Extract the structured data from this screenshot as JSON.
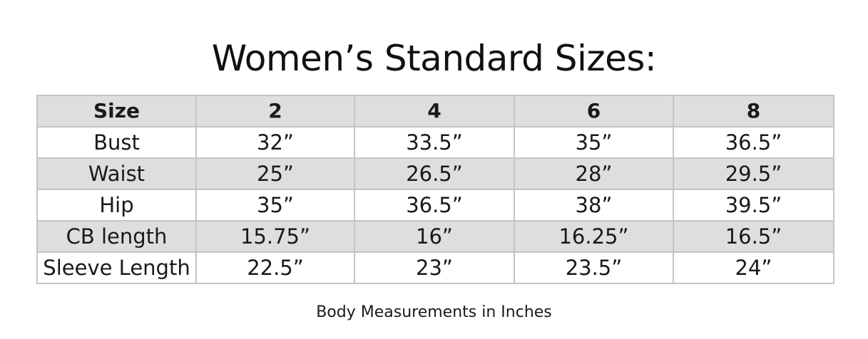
{
  "title": "Women’s Standard Sizes:",
  "table": {
    "header": [
      "Size",
      "2",
      "4",
      "6",
      "8"
    ],
    "rows": [
      {
        "label": "Bust",
        "values": [
          "32”",
          "33.5”",
          "35”",
          "36.5”"
        ]
      },
      {
        "label": "Waist",
        "values": [
          "25”",
          "26.5”",
          "28”",
          "29.5”"
        ]
      },
      {
        "label": "Hip",
        "values": [
          "35”",
          "36.5”",
          "38”",
          "39.5”"
        ]
      },
      {
        "label": "CB length",
        "values": [
          "15.75”",
          "16”",
          "16.25”",
          "16.5”"
        ]
      },
      {
        "label": "Sleeve Length",
        "values": [
          "22.5”",
          "23”",
          "23.5”",
          "24”"
        ]
      }
    ]
  },
  "caption": "Body Measurements in Inches",
  "colors": {
    "shaded_row": "#dedede",
    "border": "#c4c4c4",
    "text": "#1a1a1a"
  }
}
